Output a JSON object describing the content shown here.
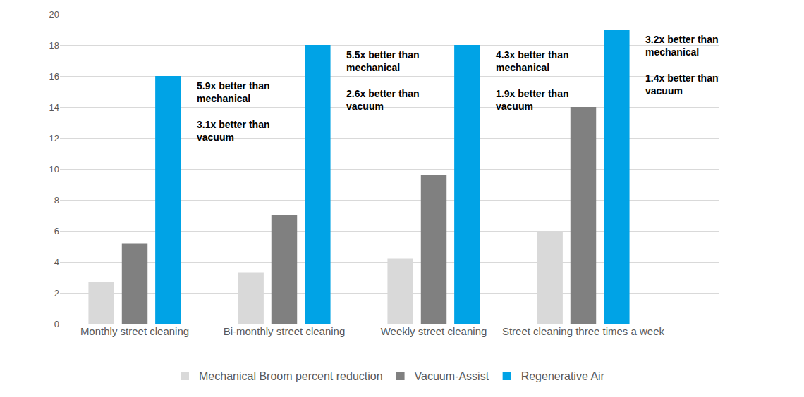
{
  "chart_data": {
    "type": "bar",
    "categories": [
      "Monthly street cleaning",
      "Bi-monthly street cleaning",
      "Weekly street cleaning",
      "Street cleaning three times a week"
    ],
    "series": [
      {
        "name": "Mechanical Broom percent reduction",
        "color": "#d9d9d9",
        "values": [
          2.7,
          3.3,
          4.2,
          6.0
        ]
      },
      {
        "name": "Vacuum-Assist",
        "color": "#808080",
        "values": [
          5.2,
          7.0,
          9.6,
          14.0
        ]
      },
      {
        "name": "Regenerative Air",
        "color": "#00a3e6",
        "values": [
          16,
          18,
          18,
          19
        ]
      }
    ],
    "annotations": [
      {
        "category": "Monthly street cleaning",
        "lines": [
          [
            "5.9x better than",
            "mechanical"
          ],
          [
            "3.1x better than",
            "vacuum"
          ]
        ]
      },
      {
        "category": "Bi-monthly street cleaning",
        "lines": [
          [
            "5.5x better than",
            "mechanical"
          ],
          [
            "2.6x better than",
            "vacuum"
          ]
        ]
      },
      {
        "category": "Weekly street cleaning",
        "lines": [
          [
            "4.3x better than",
            "mechanical"
          ],
          [
            "1.9x better than",
            "vacuum"
          ]
        ]
      },
      {
        "category": "Street cleaning three times a week",
        "lines": [
          [
            "3.2x better than",
            "mechanical"
          ],
          [
            "1.4x better than",
            "vacuum"
          ]
        ]
      }
    ],
    "ylim": [
      0,
      20
    ],
    "yticks": [
      0,
      2,
      4,
      6,
      8,
      10,
      12,
      14,
      16,
      18,
      20
    ],
    "grid": true,
    "legend": "bottom"
  }
}
